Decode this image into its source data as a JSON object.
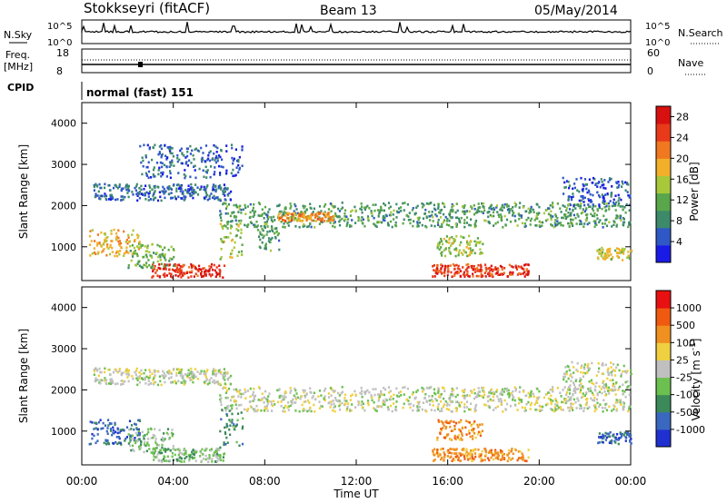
{
  "header": {
    "station": "Stokkseyri (fitACF)",
    "beam": "Beam 13",
    "date": "05/May/2014"
  },
  "top_panels": {
    "nsky_label": "N.Sky",
    "nsky_ticks": [
      "10^5",
      "10^0"
    ],
    "nsearch_label": "N.Search",
    "nsearch_ticks": [
      "10^5",
      "10^0"
    ],
    "freq_label": "Freq.",
    "freq_unit": "[MHz]",
    "freq_ticks": [
      "18",
      "8"
    ],
    "nave_label": "Nave",
    "nave_ticks": [
      "60",
      "0"
    ],
    "cpid_label": "CPID",
    "cpid_value": "normal (fast) 151"
  },
  "chart_data": [
    {
      "type": "heatmap",
      "title": "",
      "ylabel": "Slant Range [km]",
      "xlabel": "Time UT",
      "x_ticks": [
        "00:00",
        "04:00",
        "08:00",
        "12:00",
        "16:00",
        "20:00",
        "00:00"
      ],
      "y_ticks": [
        1000,
        2000,
        3000,
        4000
      ],
      "xlim_hours": [
        0,
        24
      ],
      "ylim": [
        180,
        4500
      ],
      "colorbar": {
        "label": "Power [dB]",
        "ticks": [
          4,
          8,
          12,
          16,
          20,
          24,
          28
        ],
        "range": [
          0,
          30
        ],
        "colors": [
          "#1a1ae6",
          "#2f58c6",
          "#3d8a6a",
          "#5aa64a",
          "#a8c83a",
          "#f2b02a",
          "#f07820",
          "#e83a1a",
          "#d81010"
        ]
      },
      "blobs": [
        {
          "t": [
            0.5,
            6.5
          ],
          "r": [
            2150,
            2550
          ],
          "v": 6
        },
        {
          "t": [
            6.0,
            24.0
          ],
          "r": [
            1500,
            2100
          ],
          "v": 10
        },
        {
          "t": [
            8.5,
            11.0
          ],
          "r": [
            1650,
            1850
          ],
          "v": 20
        },
        {
          "t": [
            3.0,
            6.2
          ],
          "r": [
            280,
            600
          ],
          "v": 26
        },
        {
          "t": [
            15.3,
            19.5
          ],
          "r": [
            300,
            600
          ],
          "v": 25
        },
        {
          "t": [
            0.3,
            2.5
          ],
          "r": [
            800,
            1450
          ],
          "v": 18
        },
        {
          "t": [
            2.0,
            4.0
          ],
          "r": [
            500,
            1100
          ],
          "v": 12
        },
        {
          "t": [
            6.0,
            7.0
          ],
          "r": [
            600,
            1600
          ],
          "v": 14
        },
        {
          "t": [
            7.6,
            8.6
          ],
          "r": [
            900,
            1500
          ],
          "v": 10
        },
        {
          "t": [
            15.5,
            17.5
          ],
          "r": [
            800,
            1300
          ],
          "v": 14
        },
        {
          "t": [
            22.5,
            24.0
          ],
          "r": [
            700,
            1000
          ],
          "v": 16
        },
        {
          "t": [
            21.0,
            24.0
          ],
          "r": [
            2000,
            2700
          ],
          "v": 5
        },
        {
          "t": [
            2.5,
            7.0
          ],
          "r": [
            2700,
            3500
          ],
          "v": 6
        }
      ]
    },
    {
      "type": "heatmap",
      "title": "",
      "ylabel": "Slant Range [km]",
      "xlabel": "Time UT",
      "x_ticks": [
        "00:00",
        "04:00",
        "08:00",
        "12:00",
        "16:00",
        "20:00",
        "00:00"
      ],
      "y_ticks": [
        1000,
        2000,
        3000,
        4000
      ],
      "xlim_hours": [
        0,
        24
      ],
      "ylim": [
        180,
        4500
      ],
      "colorbar": {
        "label": "Velocity [m s^-1]",
        "ticks": [
          1000,
          500,
          100,
          25,
          -25,
          -100,
          -500,
          -1000
        ],
        "colors": [
          "#2030d0",
          "#3a68c0",
          "#3c8a5a",
          "#6cc050",
          "#c0c0c0",
          "#f0d040",
          "#f09020",
          "#f05a10",
          "#e81010"
        ]
      },
      "blobs": [
        {
          "t": [
            0.5,
            6.5
          ],
          "r": [
            2150,
            2550
          ],
          "v": 4
        },
        {
          "t": [
            6.0,
            24.0
          ],
          "r": [
            1500,
            2100
          ],
          "v": 4
        },
        {
          "t": [
            3.0,
            6.2
          ],
          "r": [
            280,
            600
          ],
          "v": 3
        },
        {
          "t": [
            15.3,
            19.5
          ],
          "r": [
            300,
            600
          ],
          "v": 6
        },
        {
          "t": [
            0.3,
            2.5
          ],
          "r": [
            700,
            1300
          ],
          "v": 1
        },
        {
          "t": [
            2.0,
            4.0
          ],
          "r": [
            500,
            1100
          ],
          "v": 3
        },
        {
          "t": [
            6.0,
            7.0
          ],
          "r": [
            600,
            1600
          ],
          "v": 2
        },
        {
          "t": [
            15.5,
            17.5
          ],
          "r": [
            800,
            1300
          ],
          "v": 6
        },
        {
          "t": [
            22.5,
            24.0
          ],
          "r": [
            700,
            1000
          ],
          "v": 1
        },
        {
          "t": [
            21.0,
            24.0
          ],
          "r": [
            2000,
            2700
          ],
          "v": 4
        }
      ]
    }
  ]
}
